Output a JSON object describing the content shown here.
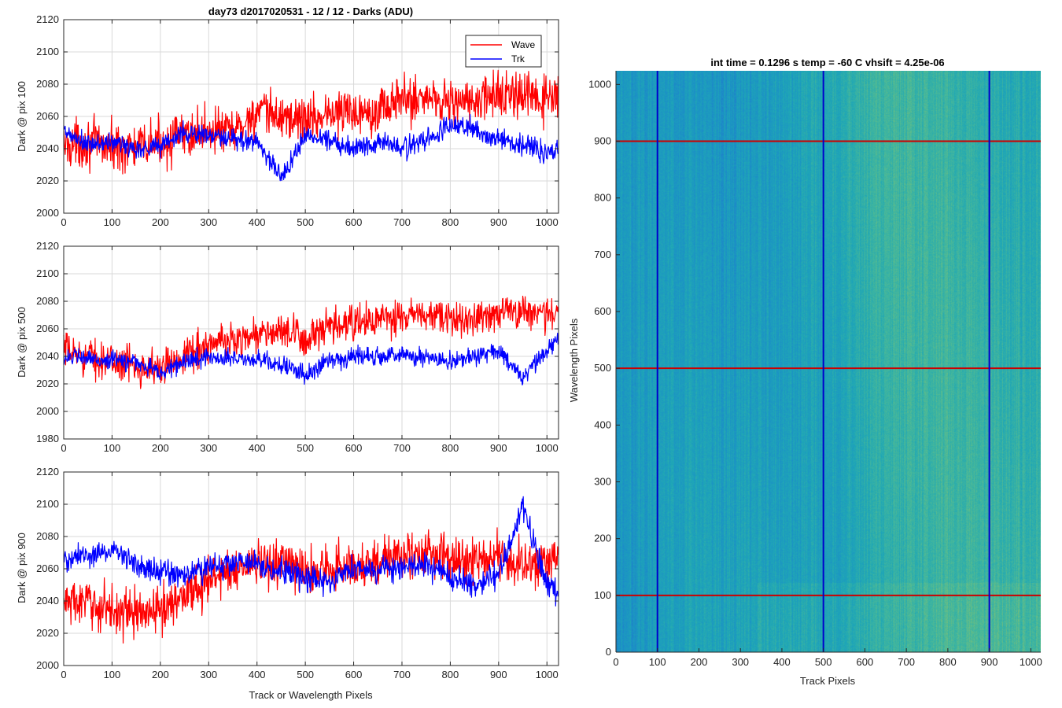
{
  "chart_data": [
    {
      "type": "line",
      "title": "day73 d2017020531 - 12 / 12 - Darks (ADU)",
      "xlabel": "",
      "ylabel": "Dark @ pix 100",
      "xlim": [
        0,
        1024
      ],
      "ylim": [
        2000,
        2120
      ],
      "xticks": [
        0,
        100,
        200,
        300,
        400,
        500,
        600,
        700,
        800,
        900,
        1000
      ],
      "yticks": [
        2000,
        2020,
        2040,
        2060,
        2080,
        2100,
        2120
      ],
      "grid": true,
      "legend": {
        "placement": "top-right",
        "entries": [
          "Wave",
          "Trk"
        ]
      },
      "x": [
        0,
        50,
        100,
        150,
        200,
        250,
        300,
        350,
        400,
        450,
        500,
        550,
        600,
        650,
        700,
        750,
        800,
        850,
        900,
        950,
        1000,
        1024
      ],
      "series": [
        {
          "name": "Wave",
          "color": "#ff0000",
          "noise": 11,
          "values": [
            2042,
            2044,
            2041,
            2040,
            2044,
            2048,
            2052,
            2050,
            2062,
            2060,
            2058,
            2062,
            2063,
            2065,
            2070,
            2072,
            2070,
            2068,
            2074,
            2072,
            2070,
            2071
          ]
        },
        {
          "name": "Trk",
          "color": "#0000ff",
          "noise": 5,
          "values": [
            2050,
            2042,
            2044,
            2040,
            2042,
            2050,
            2048,
            2045,
            2045,
            2022,
            2048,
            2046,
            2040,
            2045,
            2040,
            2045,
            2055,
            2052,
            2045,
            2043,
            2038,
            2040
          ]
        }
      ]
    },
    {
      "type": "line",
      "title": "",
      "xlabel": "",
      "ylabel": "Dark @ pix 500",
      "xlim": [
        0,
        1024
      ],
      "ylim": [
        1980,
        2120
      ],
      "xticks": [
        0,
        100,
        200,
        300,
        400,
        500,
        600,
        700,
        800,
        900,
        1000
      ],
      "yticks": [
        1980,
        2000,
        2020,
        2040,
        2060,
        2080,
        2100,
        2120
      ],
      "grid": true,
      "x": [
        0,
        50,
        100,
        150,
        200,
        250,
        300,
        350,
        400,
        450,
        500,
        550,
        600,
        650,
        700,
        750,
        800,
        850,
        900,
        950,
        1000,
        1024
      ],
      "series": [
        {
          "name": "Wave",
          "color": "#ff0000",
          "noise": 10,
          "values": [
            2044,
            2040,
            2036,
            2034,
            2030,
            2042,
            2048,
            2052,
            2056,
            2058,
            2052,
            2060,
            2064,
            2066,
            2068,
            2070,
            2066,
            2068,
            2072,
            2074,
            2070,
            2072
          ]
        },
        {
          "name": "Trk",
          "color": "#0000ff",
          "noise": 5,
          "values": [
            2040,
            2038,
            2037,
            2036,
            2028,
            2036,
            2040,
            2038,
            2038,
            2034,
            2026,
            2038,
            2040,
            2040,
            2042,
            2038,
            2035,
            2040,
            2044,
            2024,
            2044,
            2052
          ]
        }
      ]
    },
    {
      "type": "line",
      "title": "",
      "xlabel": "Track or Wavelength Pixels",
      "ylabel": "Dark @ pix 900",
      "xlim": [
        0,
        1024
      ],
      "ylim": [
        2000,
        2120
      ],
      "xticks": [
        0,
        100,
        200,
        300,
        400,
        500,
        600,
        700,
        800,
        900,
        1000
      ],
      "yticks": [
        2000,
        2020,
        2040,
        2060,
        2080,
        2100,
        2120
      ],
      "grid": true,
      "x": [
        0,
        50,
        100,
        150,
        200,
        250,
        300,
        350,
        400,
        450,
        500,
        550,
        600,
        650,
        700,
        750,
        800,
        850,
        900,
        950,
        1000,
        1024
      ],
      "series": [
        {
          "name": "Wave",
          "color": "#ff0000",
          "noise": 11,
          "values": [
            2040,
            2038,
            2035,
            2032,
            2034,
            2045,
            2052,
            2060,
            2062,
            2064,
            2058,
            2060,
            2062,
            2064,
            2068,
            2070,
            2066,
            2064,
            2068,
            2062,
            2064,
            2068
          ]
        },
        {
          "name": "Trk",
          "color": "#0000ff",
          "noise": 6,
          "values": [
            2065,
            2068,
            2072,
            2064,
            2058,
            2056,
            2060,
            2064,
            2062,
            2058,
            2055,
            2052,
            2062,
            2058,
            2060,
            2062,
            2055,
            2050,
            2056,
            2100,
            2050,
            2046
          ]
        }
      ]
    },
    {
      "type": "heatmap",
      "title": "int time = 0.1296 s    temp = -60 C    vhsift = 4.25e-06",
      "xlabel": "Track Pixels",
      "ylabel": "Wavelength Pixels",
      "xlim": [
        0,
        1024
      ],
      "ylim": [
        0,
        1024
      ],
      "xticks": [
        0,
        100,
        200,
        300,
        400,
        500,
        600,
        700,
        800,
        900,
        1000
      ],
      "yticks": [
        0,
        100,
        200,
        300,
        400,
        500,
        600,
        700,
        800,
        900,
        1000
      ],
      "colormap": [
        "#2a64c8",
        "#1b8ec8",
        "#1fa7b6",
        "#47b89a",
        "#8fc36b"
      ],
      "markers": {
        "vertical": {
          "x": [
            100,
            500,
            900
          ],
          "color": "#0000cc"
        },
        "horizontal": {
          "y": [
            100,
            500,
            900
          ],
          "color": "#cc0000"
        }
      }
    }
  ]
}
